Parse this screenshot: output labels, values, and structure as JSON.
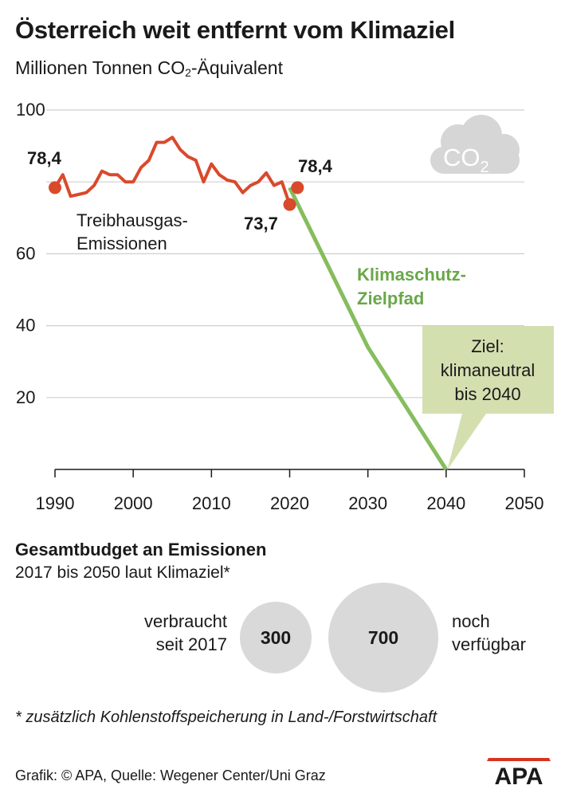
{
  "chart_data": {
    "type": "line",
    "title": "Österreich weit entfernt vom Klimaziel",
    "subtitle": {
      "prefix": "Millionen Tonnen CO",
      "sub": "2",
      "suffix": "-Äquivalent"
    },
    "x_ticks": [
      "1990",
      "2000",
      "2010",
      "2020",
      "2030",
      "2040",
      "2050"
    ],
    "y_ticks": [
      "100",
      "60",
      "40",
      "20"
    ],
    "xlim": [
      1990,
      2050
    ],
    "ylim": [
      0,
      100
    ],
    "grid": true,
    "series": [
      {
        "name": "Treibhausgas-Emissionen",
        "color": "#d9492c",
        "x": [
          1990,
          1991,
          1992,
          1993,
          1994,
          1995,
          1996,
          1997,
          1998,
          1999,
          2000,
          2001,
          2002,
          2003,
          2004,
          2005,
          2006,
          2007,
          2008,
          2009,
          2010,
          2011,
          2012,
          2013,
          2014,
          2015,
          2016,
          2017,
          2018,
          2019,
          2020
        ],
        "y": [
          78.4,
          82.0,
          76.0,
          76.5,
          77.0,
          79.0,
          83.0,
          82.0,
          82.0,
          80.0,
          80.0,
          84.0,
          86.0,
          91.0,
          91.0,
          92.4,
          89.0,
          87.0,
          86.0,
          80.0,
          85.0,
          82.0,
          80.5,
          80.0,
          77.0,
          79.0,
          80.0,
          82.5,
          79.0,
          80.0,
          73.7
        ]
      },
      {
        "name": "Klimaschutz-Zielpfad",
        "color": "#86bd5d",
        "x": [
          2020,
          2030,
          2040
        ],
        "y": [
          78.4,
          34.0,
          0
        ]
      }
    ],
    "highlights": [
      {
        "x": 1990,
        "y": 78.4,
        "label": "78,4"
      },
      {
        "x": 2020,
        "y": 73.7,
        "label": "73,7"
      },
      {
        "x": 2021,
        "y": 78.4,
        "label": "78,4"
      }
    ],
    "annotations": {
      "emissions_line1": "Treibhausgas-",
      "emissions_line2": "Emissionen",
      "target_line1": "Klimaschutz-",
      "target_line2": "Zielpfad",
      "goal_line1": "Ziel:",
      "goal_line2": "klimaneutral",
      "goal_line3": "bis 2040",
      "cloud": "CO",
      "cloud_sub": "2"
    },
    "colors": {
      "emissions": "#d9492c",
      "target": "#86bd5d",
      "goal_box": "#d4dfb0",
      "cloud": "#d6d6d6"
    }
  },
  "budget": {
    "title": "Gesamtbudget an Emissionen",
    "subtitle": "2017 bis 2050 laut Klimaziel*",
    "used_label_line1": "verbraucht",
    "used_label_line2": "seit 2017",
    "used_value": "300",
    "remaining_value": "700",
    "remaining_label_line1": "noch",
    "remaining_label_line2": "verfügbar",
    "circle_color": "#d9d9d9"
  },
  "footnote": "* zusätzlich Kohlenstoffspeicherung in Land-/Forstwirtschaft",
  "credit": "Grafik: © APA, Quelle: Wegener Center/Uni Graz",
  "logo_text": "APA"
}
